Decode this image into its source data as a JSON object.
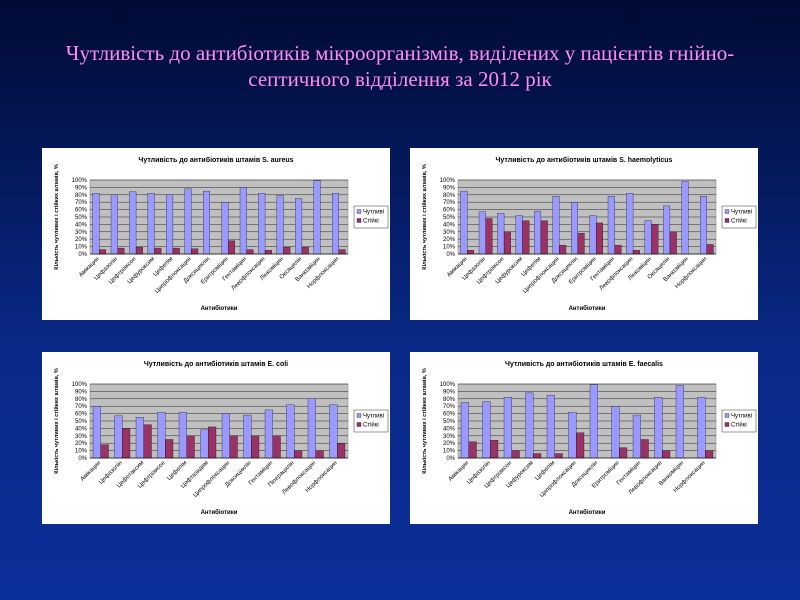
{
  "title": "Чутливість до антибіотиків мікроорганізмів, виділених у пацієнтів гнійно-септичного відділення за 2012 рік",
  "chart_data": [
    {
      "type": "bar",
      "title": "Чутливість до антибіотиків штамів S. aureus",
      "x_label": "Антибіотики",
      "y_label": "Кількість чутливих і стійких штамів, %",
      "categories": [
        "Амікацин",
        "Цефазолін",
        "Цефтріаксон",
        "Цефуроксим",
        "Цефепім",
        "Ципрофлоксацин",
        "Доксициклін",
        "Еритроміцин",
        "Гентаміцин",
        "Левофлоксацин",
        "Лінкоміцин",
        "Оксацилін",
        "Ванкоміцин",
        "Норфлоксацин"
      ],
      "series": [
        {
          "name": "Чутливі",
          "color": "#9999ff",
          "values": [
            82,
            80,
            84,
            82,
            80,
            88,
            85,
            70,
            90,
            82,
            79,
            75,
            99,
            82
          ]
        },
        {
          "name": "Стійкі",
          "color": "#993366",
          "values": [
            6,
            8,
            9,
            8,
            8,
            7,
            0,
            18,
            6,
            5,
            9,
            9,
            0,
            6
          ]
        }
      ],
      "ylim": [
        0,
        100
      ],
      "yticks": [
        {
          "value": 0,
          "label": "0%"
        },
        {
          "value": 10,
          "label": "10%"
        },
        {
          "value": 20,
          "label": "20%"
        },
        {
          "value": 30,
          "label": "30%"
        },
        {
          "value": 40,
          "label": "40%"
        },
        {
          "value": 50,
          "label": "50%"
        },
        {
          "value": 60,
          "label": "60%"
        },
        {
          "value": 70,
          "label": "70%"
        },
        {
          "value": 80,
          "label": "80%"
        },
        {
          "value": 90,
          "label": "90%"
        },
        {
          "value": 100,
          "label": "100%"
        }
      ],
      "grid": true,
      "legend": "right"
    },
    {
      "type": "bar",
      "title": "Чутливість до антибіотиків штамів S. haemolyticus",
      "x_label": "Антибіотики",
      "y_label": "Кількість чутливих і стійких штамів, %",
      "categories": [
        "Амікацин",
        "Цефазолін",
        "Цефтріаксон",
        "Цефуроксим",
        "Цефепім",
        "Ципрофлоксацин",
        "Доксициклін",
        "Еритроміцин",
        "Гентаміцин",
        "Левофлоксацин",
        "Лінкоміцин",
        "Оксацилін",
        "Ванкоміцин",
        "Норфлоксацин"
      ],
      "series": [
        {
          "name": "Чутливі",
          "color": "#9999ff",
          "values": [
            85,
            57,
            55,
            52,
            58,
            78,
            70,
            52,
            78,
            82,
            45,
            65,
            98,
            78
          ]
        },
        {
          "name": "Стійкі",
          "color": "#993366",
          "values": [
            5,
            48,
            30,
            45,
            45,
            12,
            28,
            42,
            12,
            5,
            40,
            30,
            0,
            13
          ]
        }
      ],
      "ylim": [
        0,
        100
      ],
      "yticks": [
        {
          "value": 0,
          "label": "0%"
        },
        {
          "value": 10,
          "label": "10%"
        },
        {
          "value": 20,
          "label": "20%"
        },
        {
          "value": 30,
          "label": "30%"
        },
        {
          "value": 40,
          "label": "40%"
        },
        {
          "value": 50,
          "label": "50%"
        },
        {
          "value": 60,
          "label": "60%"
        },
        {
          "value": 70,
          "label": "70%"
        },
        {
          "value": 80,
          "label": "80%"
        },
        {
          "value": 90,
          "label": "90%"
        },
        {
          "value": 100,
          "label": "100%"
        }
      ],
      "grid": true,
      "legend": "right"
    },
    {
      "type": "bar",
      "title": "Чутливість до антибіотиків штамів E. coli",
      "x_label": "Антибіотики",
      "y_label": "Кількість чутливих і стійких штамів, %",
      "categories": [
        "Амікацин",
        "Цефазолін",
        "Цефотаксим",
        "Цефтріаксон",
        "Цефепім",
        "Цефтазидим",
        "Ципрофлоксацин",
        "Доксициклін",
        "Гентаміцин",
        "Піперацилін",
        "Левофлоксацин",
        "Норфлоксацин"
      ],
      "series": [
        {
          "name": "Чутливі",
          "color": "#9999ff",
          "values": [
            70,
            57,
            55,
            62,
            62,
            38,
            60,
            58,
            65,
            72,
            80,
            72
          ]
        },
        {
          "name": "Стійкі",
          "color": "#993366",
          "values": [
            18,
            40,
            45,
            25,
            30,
            42,
            30,
            30,
            30,
            10,
            10,
            20
          ]
        }
      ],
      "ylim": [
        0,
        100
      ],
      "yticks": [
        {
          "value": 0,
          "label": "0%"
        },
        {
          "value": 10,
          "label": "10%"
        },
        {
          "value": 20,
          "label": "20%"
        },
        {
          "value": 30,
          "label": "30%"
        },
        {
          "value": 40,
          "label": "40%"
        },
        {
          "value": 50,
          "label": "50%"
        },
        {
          "value": 60,
          "label": "60%"
        },
        {
          "value": 70,
          "label": "70%"
        },
        {
          "value": 80,
          "label": "80%"
        },
        {
          "value": 90,
          "label": "90%"
        },
        {
          "value": 100,
          "label": "100%"
        }
      ],
      "grid": true,
      "legend": "right"
    },
    {
      "type": "bar",
      "title": "Чутливість до антибіотиків штамів E. faecalis",
      "x_label": "Антибіотики",
      "y_label": "Кількість чутливих і стійких штамів, %",
      "categories": [
        "Амікацин",
        "Цефазолін",
        "Цефтріаксон",
        "Цефуроксим",
        "Цефепім",
        "Ципрофлоксацин",
        "Доксициклін",
        "Еритроміцин",
        "Гентаміцин",
        "Левофлоксацин",
        "Ванкоміцин",
        "Норфлоксацин"
      ],
      "series": [
        {
          "name": "Чутливі",
          "color": "#9999ff",
          "values": [
            75,
            76,
            82,
            88,
            85,
            62,
            99,
            70,
            58,
            82,
            98,
            82
          ]
        },
        {
          "name": "Стійкі",
          "color": "#993366",
          "values": [
            22,
            24,
            10,
            6,
            6,
            34,
            0,
            14,
            25,
            10,
            0,
            10
          ]
        }
      ],
      "ylim": [
        0,
        100
      ],
      "yticks": [
        {
          "value": 0,
          "label": "0%"
        },
        {
          "value": 10,
          "label": "10%"
        },
        {
          "value": 20,
          "label": "20%"
        },
        {
          "value": 30,
          "label": "30%"
        },
        {
          "value": 40,
          "label": "40%"
        },
        {
          "value": 50,
          "label": "50%"
        },
        {
          "value": 60,
          "label": "60%"
        },
        {
          "value": 70,
          "label": "70%"
        },
        {
          "value": 80,
          "label": "80%"
        },
        {
          "value": 90,
          "label": "90%"
        },
        {
          "value": 100,
          "label": "100%"
        }
      ],
      "grid": true,
      "legend": "right"
    }
  ]
}
